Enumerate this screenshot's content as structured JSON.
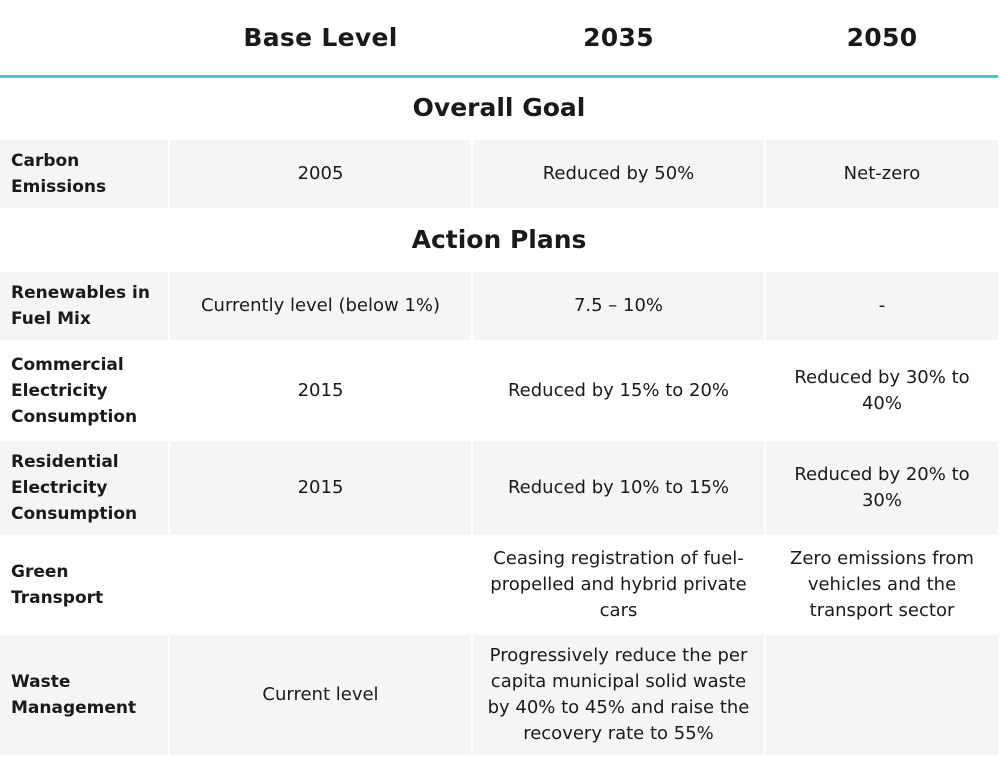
{
  "header": {
    "col0": "",
    "col1": "Base Level",
    "col2": "2035",
    "col3": "2050"
  },
  "sections": {
    "overall_goal": "Overall Goal",
    "action_plans": "Action Plans"
  },
  "rows": [
    {
      "label": "Carbon Emissions",
      "base": "2005",
      "y2035": "Reduced by 50%",
      "y2050": "Net-zero"
    },
    {
      "label": "Renewables in Fuel Mix",
      "base": "Currently level (below 1%)",
      "y2035": "7.5 – 10%",
      "y2050": "-"
    },
    {
      "label": "Commercial Electricity Consumption",
      "base": "2015",
      "y2035": "Reduced by 15% to 20%",
      "y2050": "Reduced by 30% to 40%"
    },
    {
      "label": "Residential Electricity Consumption",
      "base": "2015",
      "y2035": "Reduced by 10% to 15%",
      "y2050": "Reduced by 20% to 30%"
    },
    {
      "label": "Green Transport",
      "base": "",
      "y2035": "Ceasing registration of fuel-propelled and hybrid private cars",
      "y2050": "Zero emissions from vehicles and the transport sector"
    },
    {
      "label": "Waste Management",
      "base": "Current level",
      "y2035": "Progressively reduce the per capita municipal solid waste by 40% to 45% and raise the recovery rate to 55%",
      "y2050": ""
    }
  ],
  "colors": {
    "accent": "#4cc9c4",
    "shade": "#f4f5f4"
  }
}
